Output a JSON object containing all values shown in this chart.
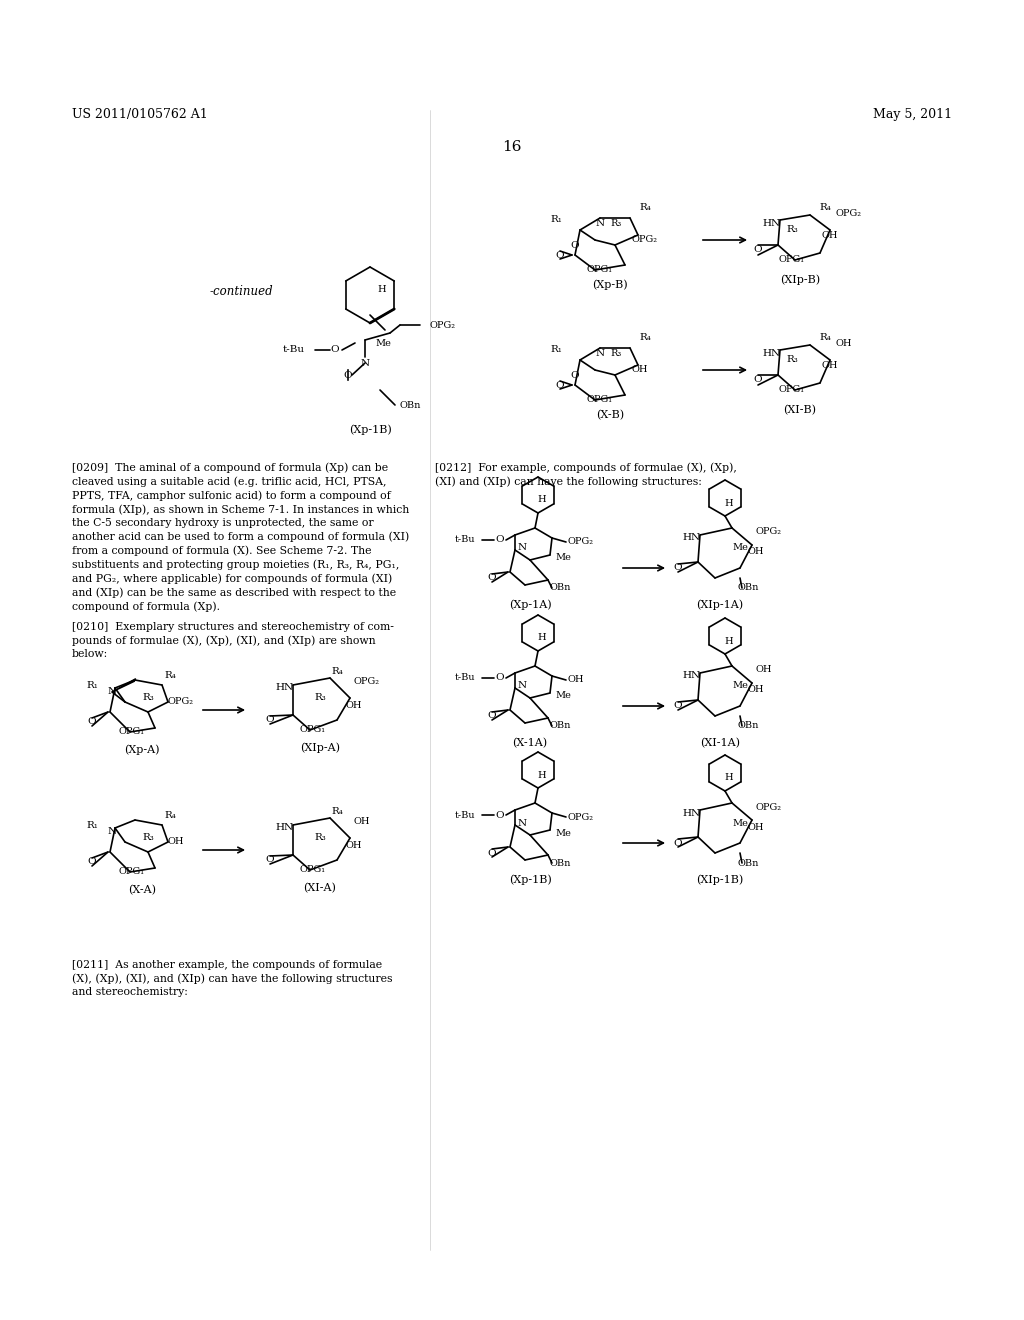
{
  "header_left": "US 2011/0105762 A1",
  "header_right": "May 5, 2011",
  "page_number": "16",
  "background_color": "#ffffff",
  "text_color": "#000000",
  "image_path": null
}
